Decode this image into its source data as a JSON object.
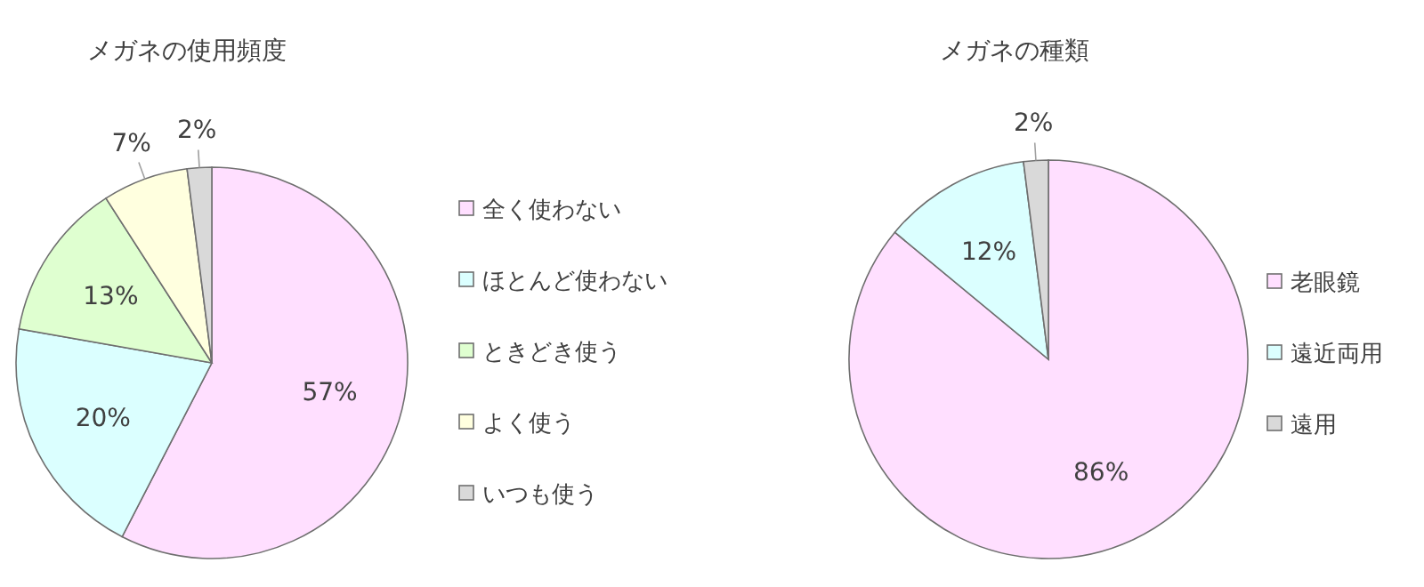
{
  "chart_data": [
    {
      "type": "pie",
      "title": "メガネの使用頻度",
      "categories": [
        "全く使わない",
        "ほとんど使わない",
        "ときどき使う",
        "よく使う",
        "いつも使う"
      ],
      "values": [
        57,
        20,
        13,
        7,
        2
      ],
      "colors": [
        "#ffdfff",
        "#dbffff",
        "#dfffd0",
        "#ffffdf",
        "#d9d9d9"
      ],
      "value_labels": [
        "57%",
        "20%",
        "13%",
        "7%",
        "2%"
      ],
      "legend": "right"
    },
    {
      "type": "pie",
      "title": "メガネの種類",
      "categories": [
        "老眼鏡",
        "遠近両用",
        "遠用"
      ],
      "values": [
        86,
        12,
        2
      ],
      "colors": [
        "#ffdfff",
        "#dbffff",
        "#d9d9d9"
      ],
      "value_labels": [
        "86%",
        "12%",
        "2%"
      ],
      "legend": "right"
    }
  ]
}
